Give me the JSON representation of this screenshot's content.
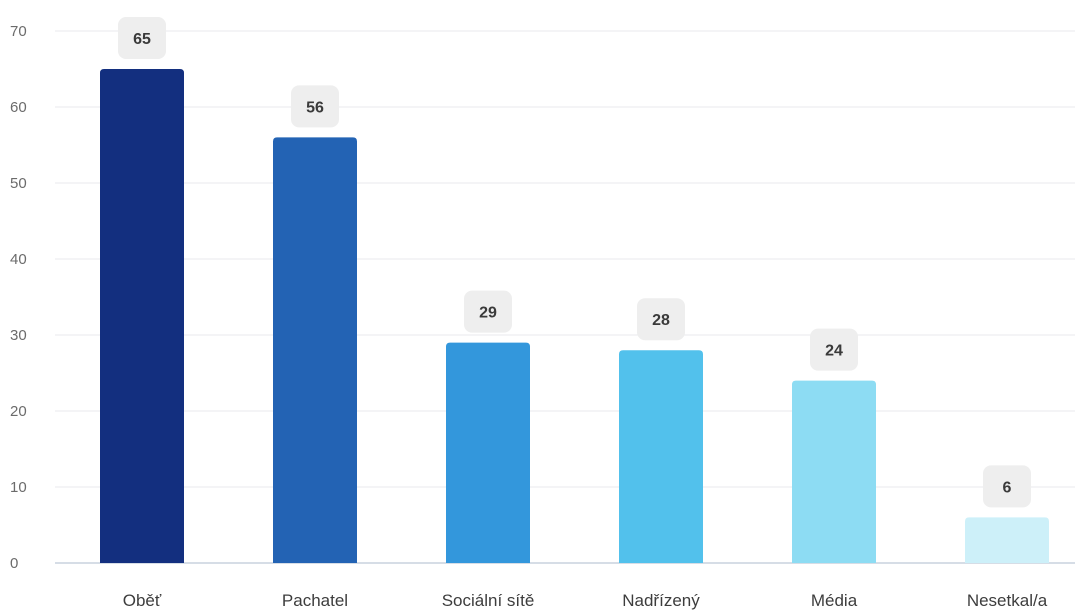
{
  "chart_data": {
    "type": "bar",
    "categories": [
      "Oběť",
      "Pachatel",
      "Sociální sítě",
      "Nadřízený",
      "Média",
      "Nesetkal/a"
    ],
    "values": [
      65,
      56,
      29,
      28,
      24,
      6
    ],
    "bar_colors": [
      "#132f7f",
      "#2363b4",
      "#3397dc",
      "#52c1ec",
      "#8ddcf3",
      "#cdf0f9"
    ],
    "ylim": [
      0,
      70
    ],
    "y_ticks": [
      0,
      10,
      20,
      30,
      40,
      50,
      60,
      70
    ],
    "grid": true,
    "data_labels": true,
    "title": "",
    "xlabel": "",
    "ylabel": ""
  }
}
